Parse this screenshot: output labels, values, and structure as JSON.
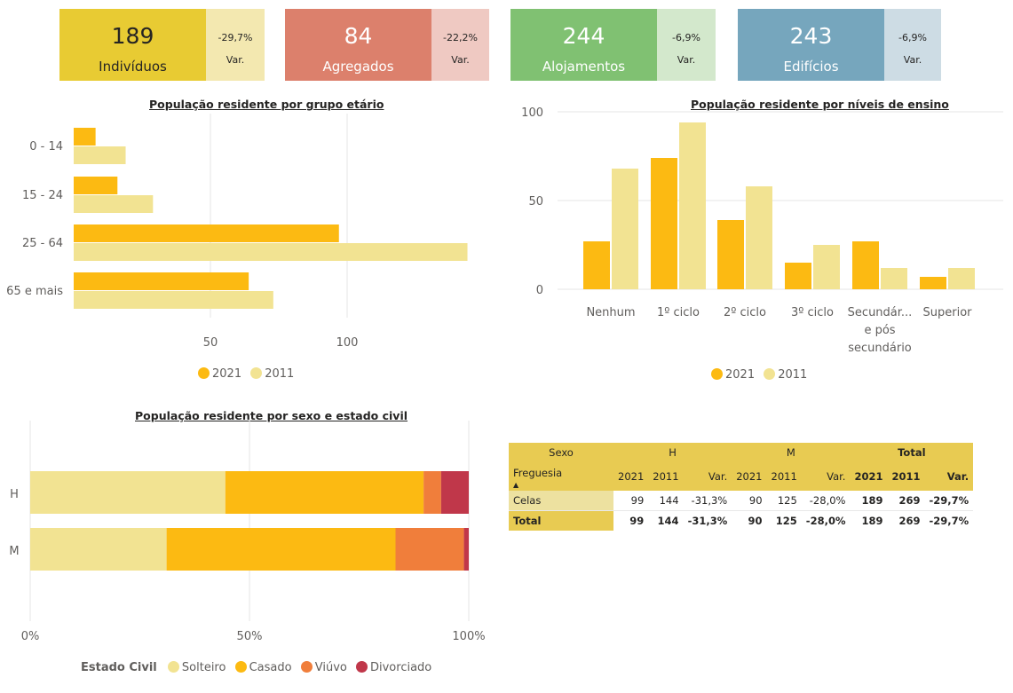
{
  "kpis": [
    {
      "value": "189",
      "label": "Indivíduos",
      "var": "-29,7%",
      "var_label": "Var.",
      "main_color": "#e8cb33",
      "var_color": "#f3e8b0",
      "text_color": "#252423"
    },
    {
      "value": "84",
      "label": "Agregados",
      "var": "-22,2%",
      "var_label": "Var.",
      "main_color": "#dc806c",
      "var_color": "#efc9c2",
      "text_color": "#ffffff"
    },
    {
      "value": "244",
      "label": "Alojamentos",
      "var": "-6,9%",
      "var_label": "Var.",
      "main_color": "#80c172",
      "var_color": "#d3e8cc",
      "text_color": "#ffffff"
    },
    {
      "value": "243",
      "label": "Edifícios",
      "var": "-6,9%",
      "var_label": "Var.",
      "main_color": "#76a6bd",
      "var_color": "#cddce4",
      "text_color": "#ffffff"
    }
  ],
  "colors": {
    "y2021": "#fcba12",
    "y2011": "#f2e392",
    "solteiro": "#f2e392",
    "casado": "#fcba12",
    "viuvo": "#f07e3b",
    "divorciado": "#c0374a"
  },
  "chart_data": [
    {
      "type": "bar",
      "orientation": "horizontal",
      "title": "População residente por grupo etário",
      "categories": [
        "0 - 14",
        "15 - 24",
        "25 - 64",
        "65 e mais"
      ],
      "series": [
        {
          "name": "2021",
          "values": [
            8,
            16,
            97,
            64
          ]
        },
        {
          "name": "2011",
          "values": [
            19,
            29,
            144,
            73
          ]
        }
      ],
      "xticks": [
        50,
        100
      ],
      "xlim": [
        0,
        145
      ],
      "legend": "bottom"
    },
    {
      "type": "bar",
      "title": "População residente por níveis de ensino",
      "categories": [
        "Nenhum",
        "1º ciclo",
        "2º ciclo",
        "3º ciclo",
        "Secundár... e pós secundário",
        "Superior"
      ],
      "series": [
        {
          "name": "2021",
          "values": [
            27,
            74,
            39,
            15,
            27,
            7
          ]
        },
        {
          "name": "2011",
          "values": [
            68,
            94,
            58,
            25,
            12,
            12
          ]
        }
      ],
      "yticks": [
        0,
        50,
        100
      ],
      "ylim": [
        0,
        100
      ],
      "legend": "bottom"
    },
    {
      "type": "bar",
      "orientation": "horizontal",
      "stacked": "percent",
      "title": "População residente por sexo e estado civil",
      "categories": [
        "H",
        "M"
      ],
      "legend_title": "Estado Civil",
      "series": [
        {
          "name": "Solteiro",
          "values": [
            44.5,
            31.1
          ]
        },
        {
          "name": "Casado",
          "values": [
            45.2,
            52.2
          ]
        },
        {
          "name": "Viúvo",
          "values": [
            4.0,
            15.6
          ]
        },
        {
          "name": "Divorciado",
          "values": [
            6.3,
            1.1
          ]
        }
      ],
      "xticks": [
        "0%",
        "50%",
        "100%"
      ],
      "legend": "bottom"
    }
  ],
  "matrix": {
    "head_row1": [
      "Sexo",
      "H",
      "M",
      "Total"
    ],
    "head_row2": [
      "Freguesia",
      "2021",
      "2011",
      "Var.",
      "2021",
      "2011",
      "Var.",
      "2021",
      "2011",
      "Var."
    ],
    "sort_indicator": "▲",
    "rows": [
      {
        "name": "Celas",
        "cells": [
          "99",
          "144",
          "-31,3%",
          "90",
          "125",
          "-28,0%",
          "189",
          "269",
          "-29,7%"
        ]
      },
      {
        "name": "Total",
        "cells": [
          "99",
          "144",
          "-31,3%",
          "90",
          "125",
          "-28,0%",
          "189",
          "269",
          "-29,7%"
        ]
      }
    ]
  }
}
